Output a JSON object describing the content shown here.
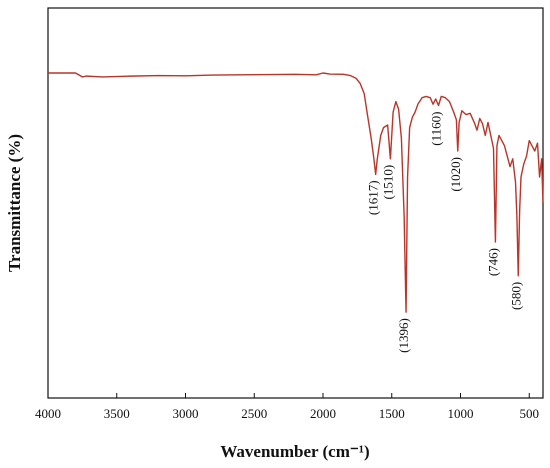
{
  "chart_data": {
    "type": "line",
    "title": "",
    "xlabel": "Wavenumber (cm⁻¹)",
    "ylabel": "Transmittance (%)",
    "xlim": [
      4000,
      400
    ],
    "x_reversed": true,
    "y_ticks_shown": false,
    "line_color": "#b8352a",
    "x_ticks": [
      4000,
      3500,
      3000,
      2500,
      2000,
      1500,
      1000,
      500
    ],
    "x_tick_labels": [
      "4000",
      "3500",
      "3000",
      "2500",
      "2000",
      "1500",
      "1000",
      "500"
    ],
    "series": [
      {
        "x": [
          4000,
          3800,
          3750,
          3720,
          3600,
          3400,
          3200,
          3000,
          2800,
          2600,
          2400,
          2200,
          2050,
          2000,
          1950,
          1850,
          1800,
          1760,
          1730,
          1700,
          1680,
          1650,
          1630,
          1617,
          1605,
          1580,
          1560,
          1530,
          1510,
          1490,
          1470,
          1450,
          1430,
          1410,
          1396,
          1385,
          1370,
          1350,
          1330,
          1310,
          1280,
          1250,
          1220,
          1200,
          1180,
          1160,
          1140,
          1110,
          1080,
          1050,
          1030,
          1020,
          1010,
          990,
          960,
          930,
          900,
          880,
          860,
          840,
          820,
          800,
          780,
          760,
          746,
          735,
          720,
          700,
          680,
          660,
          640,
          620,
          600,
          590,
          580,
          570,
          560,
          540,
          520,
          500,
          480,
          460,
          440,
          425,
          410,
          400
        ],
        "y": [
          95.0,
          95.0,
          93.5,
          93.8,
          93.5,
          93.8,
          94.0,
          93.9,
          94.2,
          94.3,
          94.4,
          94.5,
          94.3,
          95.0,
          94.6,
          94.5,
          94.0,
          93.0,
          91.0,
          87.0,
          80.0,
          70.0,
          62.0,
          56.0,
          62.0,
          71.0,
          74.0,
          75.0,
          62.0,
          80.0,
          84.0,
          81.0,
          70.0,
          40.0,
          3.0,
          55.0,
          74.0,
          78.0,
          80.0,
          83.0,
          85.5,
          86.0,
          85.5,
          83.0,
          85.0,
          82.5,
          86.0,
          85.5,
          84.0,
          80.0,
          77.0,
          65.0,
          76.0,
          80.5,
          79.0,
          79.5,
          76.0,
          73.0,
          77.5,
          75.5,
          71.0,
          76.0,
          71.0,
          66.0,
          30.0,
          67.0,
          71.0,
          69.0,
          67.0,
          63.0,
          59.0,
          62.0,
          53.0,
          40.0,
          17.0,
          42.0,
          55.0,
          60.0,
          63.0,
          69.0,
          67.0,
          65.0,
          68.0,
          55.0,
          62.0,
          45.0
        ]
      }
    ],
    "ylim": [
      -30,
      120
    ],
    "annotations": [
      {
        "text": "(1617)",
        "x": 1617,
        "y": 56.0
      },
      {
        "text": "(1510)",
        "x": 1510,
        "y": 62.0
      },
      {
        "text": "(1396)",
        "x": 1396,
        "y": 3.0
      },
      {
        "text": "(1160)",
        "x": 1160,
        "y": 82.5
      },
      {
        "text": "(1020)",
        "x": 1020,
        "y": 65.0
      },
      {
        "text": "(746)",
        "x": 746,
        "y": 30.0
      },
      {
        "text": "(580)",
        "x": 580,
        "y": 17.0
      }
    ]
  }
}
